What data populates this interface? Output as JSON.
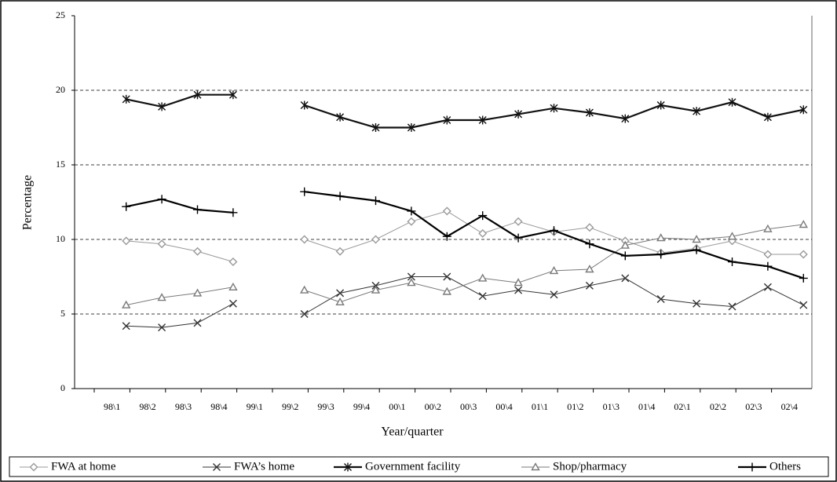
{
  "chart_data": {
    "type": "line",
    "x_label": "Year/quarter",
    "y_label": "Percentage",
    "categories": [
      "98\\1",
      "98\\2",
      "98\\3",
      "98\\4",
      "99\\1",
      "99\\2",
      "99\\3",
      "99\\4",
      "00\\1",
      "00\\2",
      "00\\3",
      "00\\4",
      "01\\1",
      "01\\2",
      "01\\3",
      "01\\4",
      "02\\1",
      "02\\2",
      "02\\3",
      "02\\4"
    ],
    "series": [
      {
        "name": "FWA at home",
        "color": "#9a9a9a",
        "marker": "diamond",
        "values": [
          9.9,
          9.7,
          9.2,
          8.5,
          null,
          10.0,
          9.2,
          10.0,
          11.2,
          11.9,
          10.4,
          11.2,
          10.5,
          10.8,
          9.9,
          9.1,
          9.4,
          9.9,
          9.0,
          9.0
        ]
      },
      {
        "name": "FWA’s home",
        "color": "#333333",
        "marker": "x",
        "values": [
          4.2,
          4.1,
          4.4,
          5.7,
          null,
          5.0,
          6.4,
          6.9,
          7.5,
          7.5,
          6.2,
          6.6,
          6.3,
          6.9,
          7.4,
          6.0,
          5.7,
          5.5,
          6.8,
          5.6
        ]
      },
      {
        "name": "Government facility",
        "color": "#111111",
        "marker": "star",
        "values": [
          19.4,
          18.9,
          19.7,
          19.7,
          null,
          19.0,
          18.2,
          17.5,
          17.5,
          18.0,
          18.0,
          18.4,
          18.8,
          18.5,
          18.1,
          19.0,
          18.6,
          19.2,
          18.2,
          18.7
        ]
      },
      {
        "name": "Shop/pharmacy",
        "color": "#7a7a7a",
        "marker": "triangle",
        "values": [
          5.6,
          6.1,
          6.4,
          6.8,
          null,
          6.6,
          5.8,
          6.6,
          7.1,
          6.5,
          7.4,
          7.1,
          7.9,
          8.0,
          9.6,
          10.1,
          10.0,
          10.2,
          10.7,
          11.0
        ]
      },
      {
        "name": "Others",
        "color": "#000000",
        "marker": "plus",
        "values": [
          12.2,
          12.7,
          12.0,
          11.8,
          null,
          13.2,
          12.9,
          12.6,
          11.9,
          10.2,
          11.6,
          10.1,
          10.6,
          9.7,
          8.9,
          9.0,
          9.3,
          8.5,
          8.2,
          7.4
        ]
      }
    ],
    "ylim": [
      0,
      25
    ],
    "yticks": [
      0,
      5,
      10,
      15,
      20,
      25
    ],
    "grid": true,
    "legend": "bottom"
  }
}
